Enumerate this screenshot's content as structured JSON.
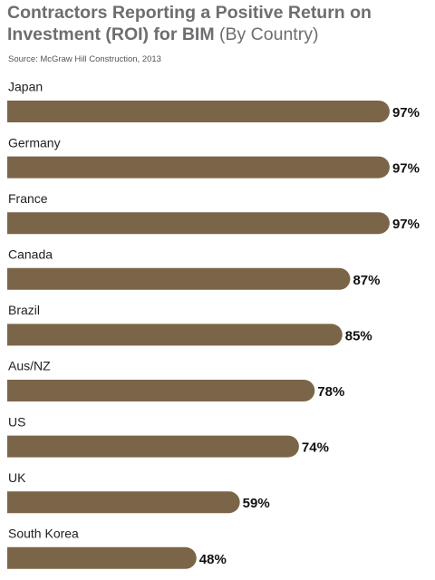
{
  "chart_data": {
    "type": "bar",
    "orientation": "horizontal",
    "title": "Contractors Reporting a Positive Return on Investment (ROI) for BIM",
    "subtitle": "(By Country)",
    "source": "Source: McGraw Hill Construction, 2013",
    "categories": [
      "Japan",
      "Germany",
      "France",
      "Canada",
      "Brazil",
      "Aus/NZ",
      "US",
      "UK",
      "South Korea"
    ],
    "values": [
      97,
      97,
      97,
      87,
      85,
      78,
      74,
      59,
      48
    ],
    "value_labels": [
      "97%",
      "97%",
      "97%",
      "87%",
      "85%",
      "78%",
      "74%",
      "59%",
      "48%"
    ],
    "color": "#7b6548"
  }
}
